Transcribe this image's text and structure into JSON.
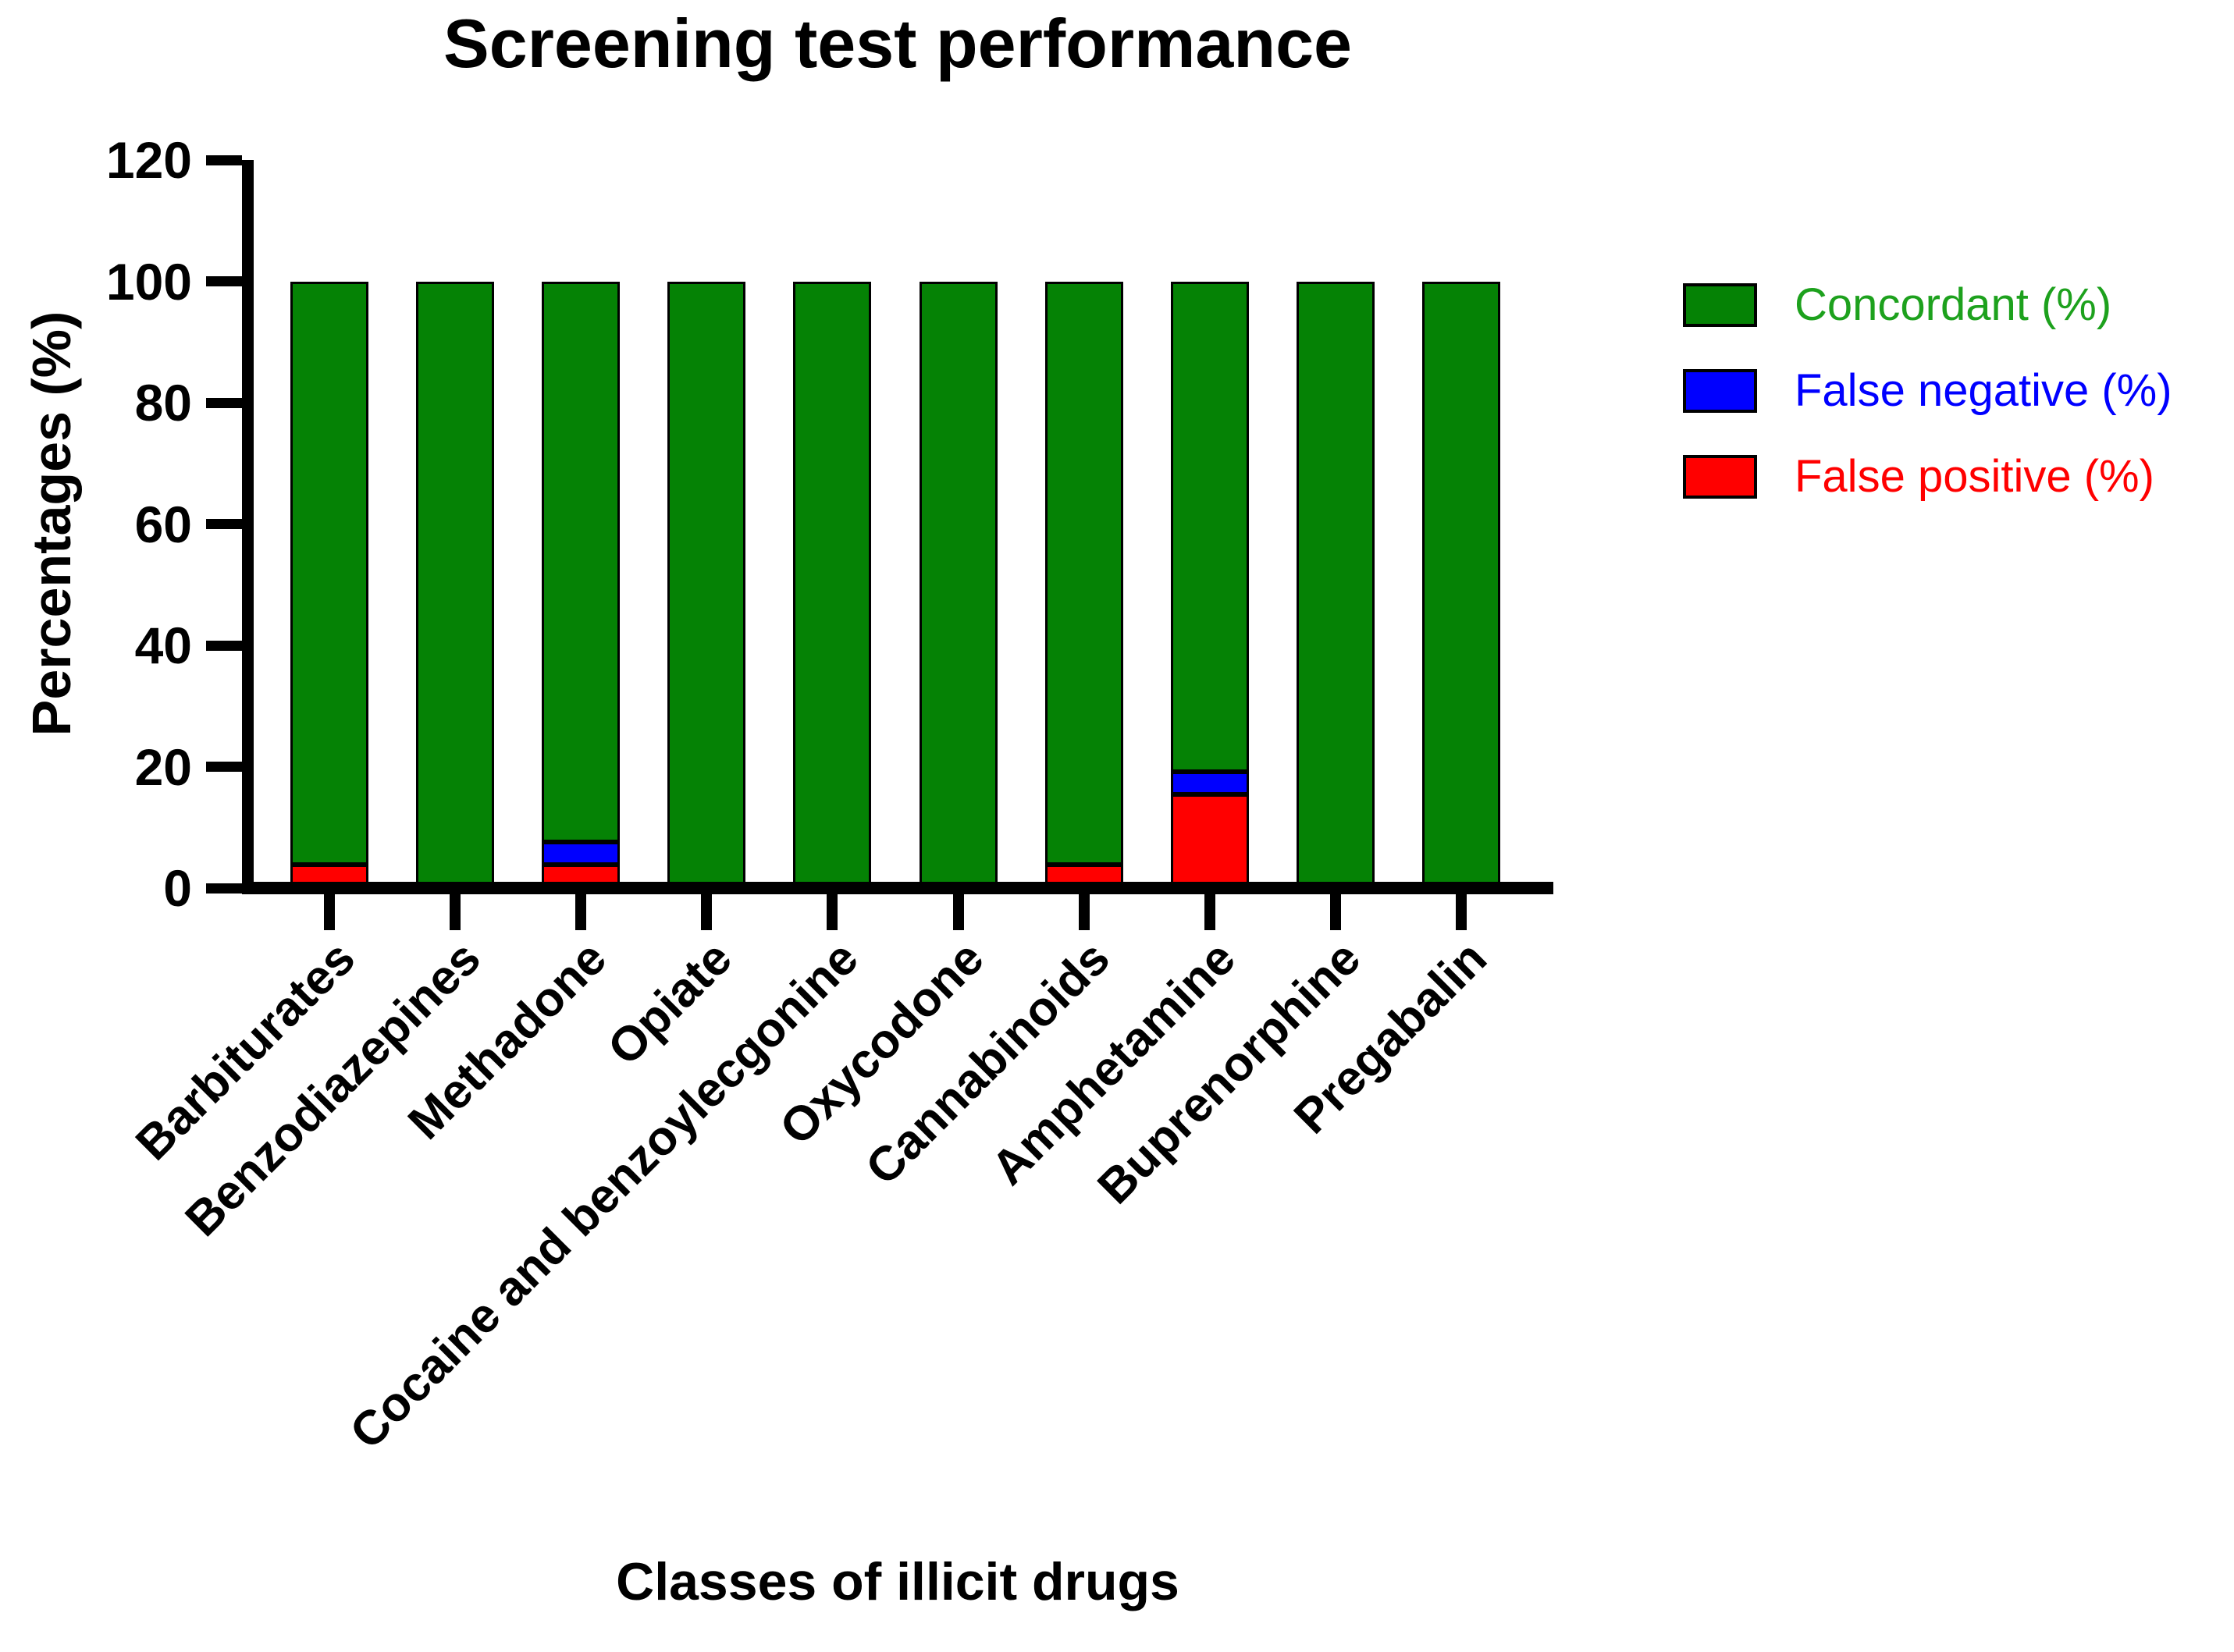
{
  "title": "Screening test performance",
  "axes": {
    "y_label": "Percentages (%)",
    "x_label": "Classes of illicit drugs",
    "y_tick_values": [
      0,
      20,
      40,
      60,
      80,
      100,
      120
    ],
    "y_max": 120
  },
  "legend": {
    "position": "right",
    "items": [
      {
        "label": "Concordant (%)",
        "swatch_color": "#058205",
        "text_color": "#1da11d"
      },
      {
        "label": "False negative (%)",
        "swatch_color": "#0000ff",
        "text_color": "#0000ff"
      },
      {
        "label": "False positive (%)",
        "swatch_color": "#ff0000",
        "text_color": "#ff0000"
      }
    ]
  },
  "colors": {
    "concordant": "#058205",
    "false_negative": "#0000ff",
    "false_positive": "#ff0000",
    "bar_border": "#000000",
    "axis": "#000000",
    "background": "#ffffff"
  },
  "chart_data": {
    "type": "bar",
    "stacked": true,
    "title": "Screening test performance",
    "xlabel": "Classes of illicit drugs",
    "ylabel": "Percentages (%)",
    "ylim": [
      0,
      120
    ],
    "y_ticks": [
      0,
      20,
      40,
      60,
      80,
      100,
      120
    ],
    "grid": false,
    "legend_position": "right",
    "categories": [
      "Barbiturates",
      "Benzodiazepines",
      "Methadone",
      "Opiate",
      "Cocaine and benzoylecgonine",
      "Oxycodone",
      "Cannabinoids",
      "Amphetamine",
      "Buprenorphine",
      "Pregabalin"
    ],
    "series": [
      {
        "name": "False positive (%)",
        "color": "#ff0000",
        "stack_order": "bottom",
        "values": [
          3.8,
          0,
          3.8,
          0,
          0,
          0,
          3.8,
          15.4,
          0,
          0
        ]
      },
      {
        "name": "False negative (%)",
        "color": "#0000ff",
        "stack_order": "middle",
        "values": [
          0,
          0,
          3.8,
          0,
          0,
          0,
          0,
          3.8,
          0,
          0
        ]
      },
      {
        "name": "Concordant (%)",
        "color": "#058205",
        "stack_order": "top",
        "values": [
          96.2,
          100,
          92.4,
          100,
          100,
          100,
          96.2,
          80.8,
          100,
          100
        ]
      }
    ]
  }
}
